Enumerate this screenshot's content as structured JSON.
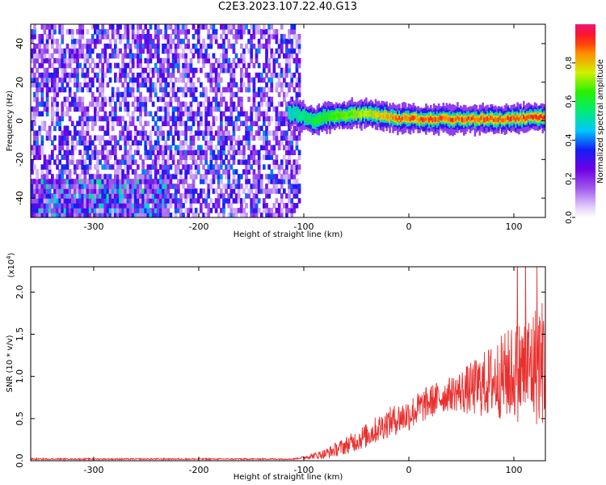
{
  "title": "C2E3.2023.107.22.40.G13",
  "chart_data": [
    {
      "type": "heatmap",
      "name": "spectrogram",
      "xlabel": "Height of straight line (km)",
      "ylabel": "Frequency (Hz)",
      "xlim": [
        -360,
        130
      ],
      "ylim": [
        -50,
        50
      ],
      "xticks": [
        -300,
        -200,
        -100,
        0,
        100
      ],
      "xtick_labels": [
        "-300",
        "-200",
        "-100",
        "0",
        "100"
      ],
      "yticks": [
        -40,
        -20,
        0,
        20,
        40
      ],
      "ytick_labels": [
        "-40",
        "-20",
        "0",
        "20",
        "40"
      ],
      "noise_region": {
        "x_range": [
          -360,
          -105
        ],
        "y_range": [
          -50,
          50
        ],
        "typical_amplitude": 0.15
      },
      "signal_band": {
        "x_range": [
          -115,
          130
        ],
        "center_freq_points": [
          {
            "x": -110,
            "y": 4
          },
          {
            "x": -100,
            "y": 2
          },
          {
            "x": -90,
            "y": 0
          },
          {
            "x": -80,
            "y": 2
          },
          {
            "x": -60,
            "y": 3
          },
          {
            "x": -40,
            "y": 4
          },
          {
            "x": -20,
            "y": 2
          },
          {
            "x": -10,
            "y": 1
          },
          {
            "x": 0,
            "y": 1
          },
          {
            "x": 20,
            "y": 1
          },
          {
            "x": 60,
            "y": 1
          },
          {
            "x": 100,
            "y": 1
          },
          {
            "x": 130,
            "y": 2
          }
        ],
        "amplitude_ramp": [
          {
            "x": -115,
            "a": 0.5
          },
          {
            "x": -80,
            "a": 0.65
          },
          {
            "x": -40,
            "a": 0.75
          },
          {
            "x": -10,
            "a": 0.9
          },
          {
            "x": 130,
            "a": 0.95
          }
        ]
      },
      "colorbar": {
        "label": "Normalized spectral amplitude",
        "range": [
          0,
          1
        ],
        "ticks": [
          0.0,
          0.2,
          0.4,
          0.6,
          0.8
        ],
        "tick_labels": [
          "0.0",
          "0.2",
          "0.4",
          "0.6",
          "0.8"
        ],
        "colormap": "rainbow (white-violet-blue-cyan-green-yellow-red-magenta)"
      }
    },
    {
      "type": "line",
      "name": "snr",
      "xlabel": "Height of straight line (km)",
      "ylabel": "SNR (10 * v/v)",
      "y_scale_label": "(x10",
      "y_scale_exponent": "4",
      "y_scale_suffix": ")",
      "xlim": [
        -360,
        130
      ],
      "ylim": [
        0,
        2.3
      ],
      "xticks": [
        -300,
        -200,
        -100,
        0,
        100
      ],
      "xtick_labels": [
        "-300",
        "-200",
        "-100",
        "0",
        "100"
      ],
      "yticks": [
        0.0,
        0.5,
        1.0,
        1.5,
        2.0
      ],
      "ytick_labels": [
        "0.0",
        "0.5",
        "1.0",
        "1.5",
        "2.0"
      ],
      "series": [
        {
          "name": "SNR",
          "color": "#e8302e",
          "envelope_points": [
            {
              "x": -360,
              "y": 0.02
            },
            {
              "x": -110,
              "y": 0.02
            },
            {
              "x": -100,
              "y": 0.04
            },
            {
              "x": -80,
              "y": 0.08
            },
            {
              "x": -60,
              "y": 0.18
            },
            {
              "x": -40,
              "y": 0.3
            },
            {
              "x": -20,
              "y": 0.45
            },
            {
              "x": 0,
              "y": 0.55
            },
            {
              "x": 20,
              "y": 0.7
            },
            {
              "x": 40,
              "y": 0.8
            },
            {
              "x": 60,
              "y": 0.85
            },
            {
              "x": 80,
              "y": 0.95
            },
            {
              "x": 100,
              "y": 1.05
            },
            {
              "x": 115,
              "y": 1.1
            },
            {
              "x": 130,
              "y": 1.2
            }
          ],
          "noise_spread": [
            {
              "x": -360,
              "s": 0.008
            },
            {
              "x": -105,
              "s": 0.008
            },
            {
              "x": -80,
              "s": 0.06
            },
            {
              "x": -40,
              "s": 0.15
            },
            {
              "x": 0,
              "s": 0.2
            },
            {
              "x": 40,
              "s": 0.2
            },
            {
              "x": 80,
              "s": 0.45
            },
            {
              "x": 110,
              "s": 0.65
            },
            {
              "x": 130,
              "s": 0.8
            }
          ],
          "peak_y": 2.3
        }
      ]
    }
  ]
}
